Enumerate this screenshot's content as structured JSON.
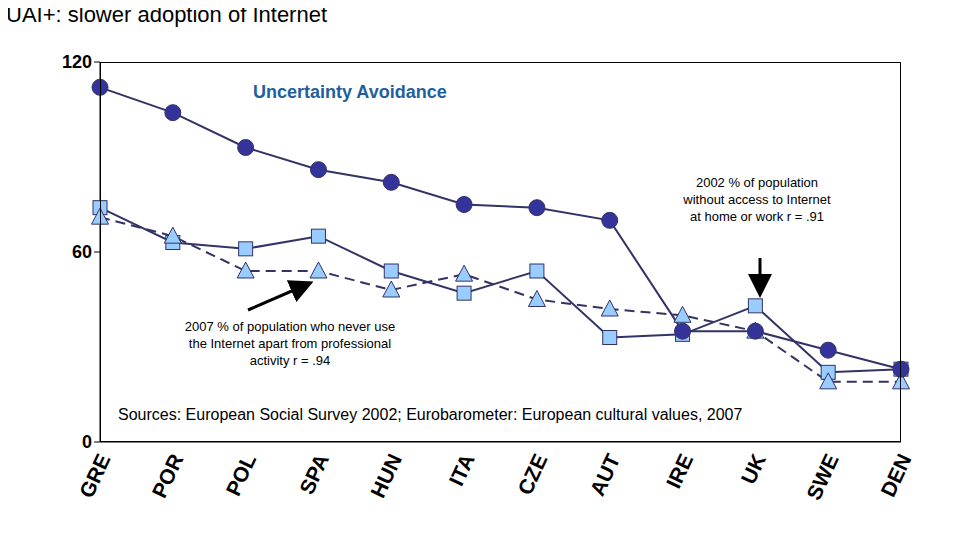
{
  "chart_data": {
    "type": "line",
    "title": "UAI+: slower adoption of Internet",
    "categories": [
      "GRE",
      "POR",
      "POL",
      "SPA",
      "HUN",
      "ITA",
      "CZE",
      "AUT",
      "IRE",
      "UK",
      "SWE",
      "DEN"
    ],
    "series": [
      {
        "name": "Uncertainty Avoidance",
        "color": "#333399",
        "marker": "circle",
        "line_style": "solid",
        "values": [
          112,
          104,
          93,
          86,
          82,
          75,
          74,
          70,
          35,
          35,
          29,
          23
        ]
      },
      {
        "name": "2002 % of population without access to Internet at home or work r = .91",
        "color": "#99ccff",
        "marker": "square",
        "line_style": "solid",
        "values": [
          74,
          63,
          61,
          65,
          54,
          47,
          54,
          33,
          34,
          43,
          22,
          23
        ]
      },
      {
        "name": "2007 % of population who never use the Internet apart from professional activity r = .94",
        "color": "#99ccff",
        "marker": "triangle",
        "line_style": "dashed",
        "values": [
          71,
          65,
          54,
          54,
          48,
          53,
          45,
          42,
          40,
          35,
          19,
          19
        ]
      }
    ],
    "ylim": [
      0,
      120
    ],
    "yticks": [
      0,
      60,
      120
    ],
    "grid": false,
    "annotations": [
      "Sources: European Social Survey 2002; Eurobarometer: European cultural values, 2007"
    ]
  }
}
